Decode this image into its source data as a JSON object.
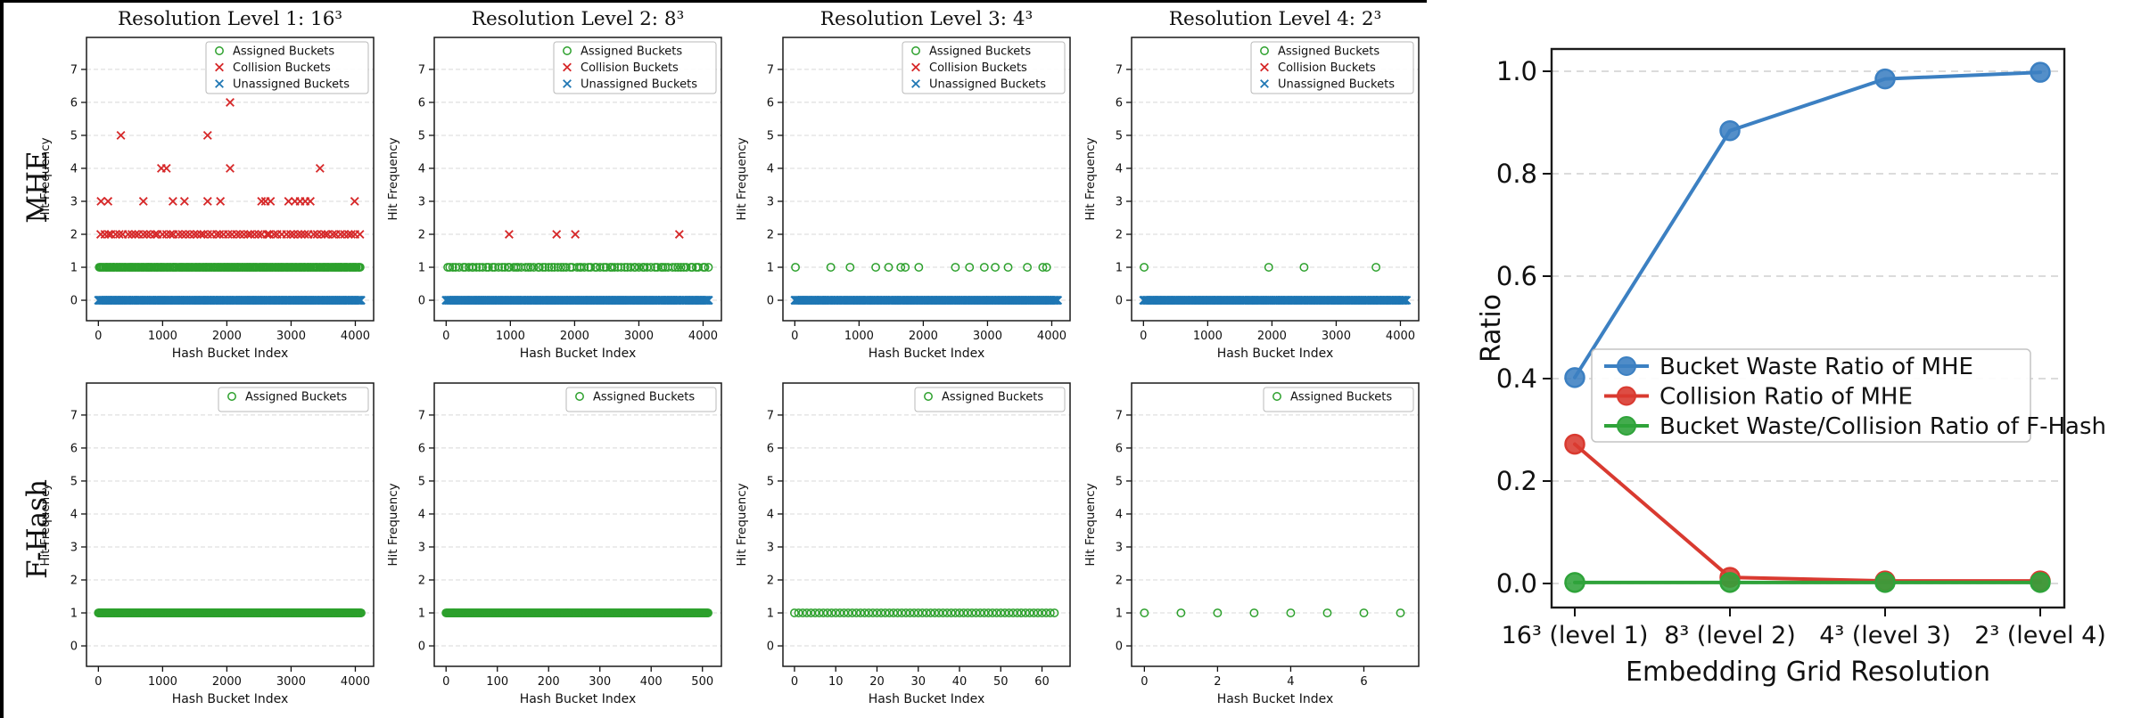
{
  "figure": {
    "row_labels": [
      "MHE",
      "F-Hash"
    ],
    "background": "#ffffff",
    "frame_color": "#1a1a1a",
    "grid_color": "#d8d8d8"
  },
  "chart_data": {
    "series_defs": {
      "assigned": {
        "label": "Assigned Buckets",
        "marker": "o",
        "color": "#2ca02c"
      },
      "collision": {
        "label": "Collision Buckets",
        "marker": "x",
        "color": "#d62728"
      },
      "unassigned": {
        "label": "Unassigned Buckets",
        "marker": "x",
        "color": "#1f77b4"
      }
    },
    "scatter_common": {
      "type": "scatter",
      "xlabel": "Hash Bucket Index",
      "ylabel": "Hit Frequency",
      "yticks": [
        0,
        1,
        2,
        3,
        4,
        5,
        6,
        7
      ],
      "ylim": [
        -0.62,
        7.97
      ],
      "grid": "horizontal-dashed",
      "legend_position": "upper right"
    },
    "subplots": [
      {
        "id": "mhe-level-1",
        "row": 0,
        "col": 0,
        "title": "Resolution Level 1: 16³",
        "xticks": [
          0,
          1000,
          2000,
          3000,
          4000
        ],
        "xlim": [
          -185,
          4285
        ],
        "legend": [
          "assigned",
          "collision",
          "unassigned"
        ],
        "series": [
          {
            "key": "unassigned",
            "band": {
              "y": 0,
              "from": 0,
              "to": 4090,
              "count": 760,
              "jitter": 12,
              "seed": 11
            }
          },
          {
            "key": "assigned",
            "band": {
              "y": 1,
              "from": 15,
              "to": 4075,
              "count": 235,
              "jitter": 14,
              "seed": 21
            }
          },
          {
            "key": "collision",
            "band": {
              "y": 2,
              "from": 30,
              "to": 4060,
              "count": 68,
              "jitter": 30,
              "seed": 31
            },
            "points": [
              [
                40,
                3
              ],
              [
                150,
                3
              ],
              [
                700,
                3
              ],
              [
                1160,
                3
              ],
              [
                1340,
                3
              ],
              [
                1700,
                3
              ],
              [
                1900,
                3
              ],
              [
                2540,
                3
              ],
              [
                2600,
                3
              ],
              [
                2680,
                3
              ],
              [
                2960,
                3
              ],
              [
                3060,
                3
              ],
              [
                3140,
                3
              ],
              [
                3220,
                3
              ],
              [
                3300,
                3
              ],
              [
                3990,
                3
              ],
              [
                980,
                4
              ],
              [
                1060,
                4
              ],
              [
                2050,
                4
              ],
              [
                3450,
                4
              ],
              [
                350,
                5
              ],
              [
                1700,
                5
              ],
              [
                2050,
                6
              ]
            ]
          }
        ]
      },
      {
        "id": "mhe-level-2",
        "row": 0,
        "col": 1,
        "title": "Resolution Level 2: 8³",
        "xticks": [
          0,
          1000,
          2000,
          3000,
          4000
        ],
        "xlim": [
          -185,
          4285
        ],
        "legend": [
          "assigned",
          "collision",
          "unassigned"
        ],
        "series": [
          {
            "key": "unassigned",
            "band": {
              "y": 0,
              "from": 0,
              "to": 4090,
              "count": 760,
              "jitter": 12,
              "seed": 12
            }
          },
          {
            "key": "assigned",
            "band": {
              "y": 1,
              "from": 20,
              "to": 4080,
              "count": 88,
              "jitter": 40,
              "seed": 22
            }
          },
          {
            "key": "collision",
            "points": [
              [
                980,
                2
              ],
              [
                1720,
                2
              ],
              [
                2010,
                2
              ],
              [
                3630,
                2
              ]
            ]
          }
        ]
      },
      {
        "id": "mhe-level-3",
        "row": 0,
        "col": 2,
        "title": "Resolution Level 3: 4³",
        "xticks": [
          0,
          1000,
          2000,
          3000,
          4000
        ],
        "xlim": [
          -185,
          4285
        ],
        "legend": [
          "assigned",
          "collision",
          "unassigned"
        ],
        "series": [
          {
            "key": "unassigned",
            "band": {
              "y": 0,
              "from": 0,
              "to": 4090,
              "count": 760,
              "jitter": 12,
              "seed": 13
            }
          },
          {
            "key": "assigned",
            "points": [
              [
                10,
                1
              ],
              [
                560,
                1
              ],
              [
                860,
                1
              ],
              [
                1260,
                1
              ],
              [
                1460,
                1
              ],
              [
                1650,
                1
              ],
              [
                1720,
                1
              ],
              [
                1930,
                1
              ],
              [
                2500,
                1
              ],
              [
                2720,
                1
              ],
              [
                2950,
                1
              ],
              [
                3120,
                1
              ],
              [
                3320,
                1
              ],
              [
                3620,
                1
              ],
              [
                3860,
                1
              ],
              [
                3920,
                1
              ]
            ]
          }
        ]
      },
      {
        "id": "mhe-level-4",
        "row": 0,
        "col": 3,
        "title": "Resolution Level 4: 2³",
        "xticks": [
          0,
          1000,
          2000,
          3000,
          4000
        ],
        "xlim": [
          -185,
          4285
        ],
        "legend": [
          "assigned",
          "collision",
          "unassigned"
        ],
        "series": [
          {
            "key": "unassigned",
            "band": {
              "y": 0,
              "from": 0,
              "to": 4090,
              "count": 760,
              "jitter": 12,
              "seed": 14
            }
          },
          {
            "key": "assigned",
            "points": [
              [
                10,
                1
              ],
              [
                1950,
                1
              ],
              [
                2500,
                1
              ],
              [
                3620,
                1
              ]
            ]
          }
        ]
      },
      {
        "id": "fhash-level-1",
        "row": 1,
        "col": 0,
        "title": "",
        "xticks": [
          0,
          1000,
          2000,
          3000,
          4000
        ],
        "xlim": [
          -185,
          4285
        ],
        "legend": [
          "assigned"
        ],
        "series": [
          {
            "key": "assigned",
            "band": {
              "y": 1,
              "from": 0,
              "to": 4090,
              "count": 560,
              "jitter": 0,
              "seed": 41
            }
          }
        ]
      },
      {
        "id": "fhash-level-2",
        "row": 1,
        "col": 1,
        "title": "",
        "xticks": [
          0,
          100,
          200,
          300,
          400,
          500
        ],
        "xlim": [
          -23,
          537
        ],
        "legend": [
          "assigned"
        ],
        "series": [
          {
            "key": "assigned",
            "band": {
              "y": 1,
              "from": 0,
              "to": 511,
              "count": 380,
              "jitter": 0,
              "seed": 42
            }
          }
        ]
      },
      {
        "id": "fhash-level-3",
        "row": 1,
        "col": 2,
        "title": "",
        "xticks": [
          0,
          10,
          20,
          30,
          40,
          50,
          60
        ],
        "xlim": [
          -2.8,
          66.8
        ],
        "legend": [
          "assigned"
        ],
        "series": [
          {
            "key": "assigned",
            "band": {
              "y": 1,
              "from": 0,
              "to": 63,
              "count": 64,
              "jitter": 0,
              "seed": 43
            }
          }
        ]
      },
      {
        "id": "fhash-level-4",
        "row": 1,
        "col": 3,
        "title": "",
        "xticks": [
          0,
          2,
          4,
          6
        ],
        "xlim": [
          -0.35,
          7.5
        ],
        "legend": [
          "assigned"
        ],
        "series": [
          {
            "key": "assigned",
            "band": {
              "y": 1,
              "from": 0,
              "to": 7,
              "count": 8,
              "jitter": 0,
              "seed": 44
            }
          }
        ]
      }
    ],
    "ratio": {
      "type": "line",
      "categories": [
        "16³ (level 1)",
        "8³ (level 2)",
        "4³ (level 3)",
        "2³ (level 4)"
      ],
      "series": [
        {
          "name": "Bucket Waste Ratio of MHE",
          "color": "#3c80c2",
          "values": [
            0.402,
            0.884,
            0.985,
            0.998
          ]
        },
        {
          "name": "Collision Ratio of MHE",
          "color": "#d93a30",
          "values": [
            0.272,
            0.012,
            0.005,
            0.005
          ]
        },
        {
          "name": "Bucket Waste/Collision Ratio of F-Hash",
          "color": "#2fa33a",
          "values": [
            0.002,
            0.002,
            0.002,
            0.002
          ]
        }
      ],
      "xlabel": "Embedding Grid Resolution",
      "ylabel": "Ratio",
      "ytick_labels": [
        "0.0",
        "0.2",
        "0.4",
        "0.6",
        "0.8",
        "1.0"
      ],
      "yticks": [
        0.0,
        0.2,
        0.4,
        0.6,
        0.8,
        1.0
      ],
      "ylim": [
        -0.047,
        1.043
      ],
      "grid": "horizontal-dashed",
      "legend_position": "center left"
    }
  }
}
